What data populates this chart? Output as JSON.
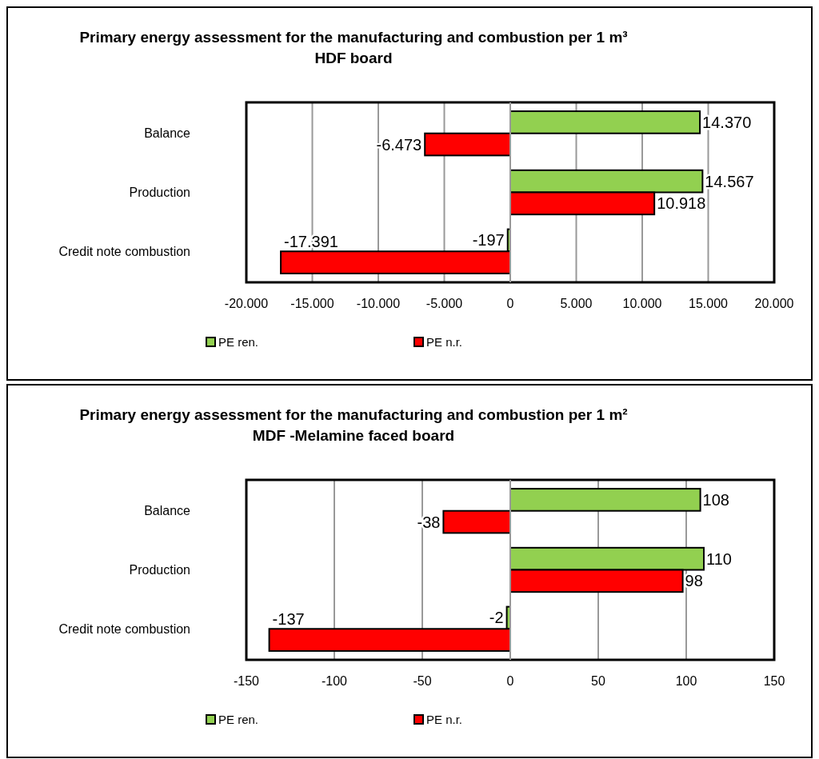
{
  "chart_data": [
    {
      "type": "bar",
      "orientation": "horizontal",
      "title": "Primary energy assessment for the manufacturing and combustion per 1 m³ HDF board",
      "categories": [
        "Balance",
        "Production",
        "Credit note combustion"
      ],
      "series": [
        {
          "name": "PE ren.",
          "color": "#92d050",
          "values": [
            14370,
            14567,
            -197
          ],
          "value_labels": [
            "14.370",
            "14.567",
            "-197"
          ]
        },
        {
          "name": "PE n.r.",
          "color": "#ff0000",
          "values": [
            -6473,
            10918,
            -17391
          ],
          "value_labels": [
            "-6.473",
            "10.918",
            "-17.391"
          ]
        }
      ],
      "xlim": [
        -20000,
        20000
      ],
      "xticks": [
        {
          "value": -20000,
          "label": "-20.000"
        },
        {
          "value": -15000,
          "label": "-15.000"
        },
        {
          "value": -10000,
          "label": "-10.000"
        },
        {
          "value": -5000,
          "label": "-5.000"
        },
        0,
        {
          "value": 5000,
          "label": "5.000"
        },
        {
          "value": 10000,
          "label": "10.000"
        },
        {
          "value": 15000,
          "label": "15.000"
        },
        {
          "value": 20000,
          "label": "20.000"
        }
      ],
      "grid": "x",
      "legend": "bottom"
    },
    {
      "type": "bar",
      "orientation": "horizontal",
      "title": "Primary energy assessment for the manufacturing and combustion per 1 m² MDF -Melamine faced board",
      "categories": [
        "Balance",
        "Production",
        "Credit note combustion"
      ],
      "series": [
        {
          "name": "PE ren.",
          "color": "#92d050",
          "values": [
            108,
            110,
            -2
          ]
        },
        {
          "name": "PE n.r.",
          "color": "#ff0000",
          "values": [
            -38,
            98,
            -137
          ]
        }
      ],
      "xlim": [
        -150,
        150
      ],
      "xticks": [
        -150,
        -100,
        -50,
        0,
        50,
        100,
        150
      ],
      "grid": "x",
      "legend": "bottom",
      "data_labels": true
    }
  ]
}
